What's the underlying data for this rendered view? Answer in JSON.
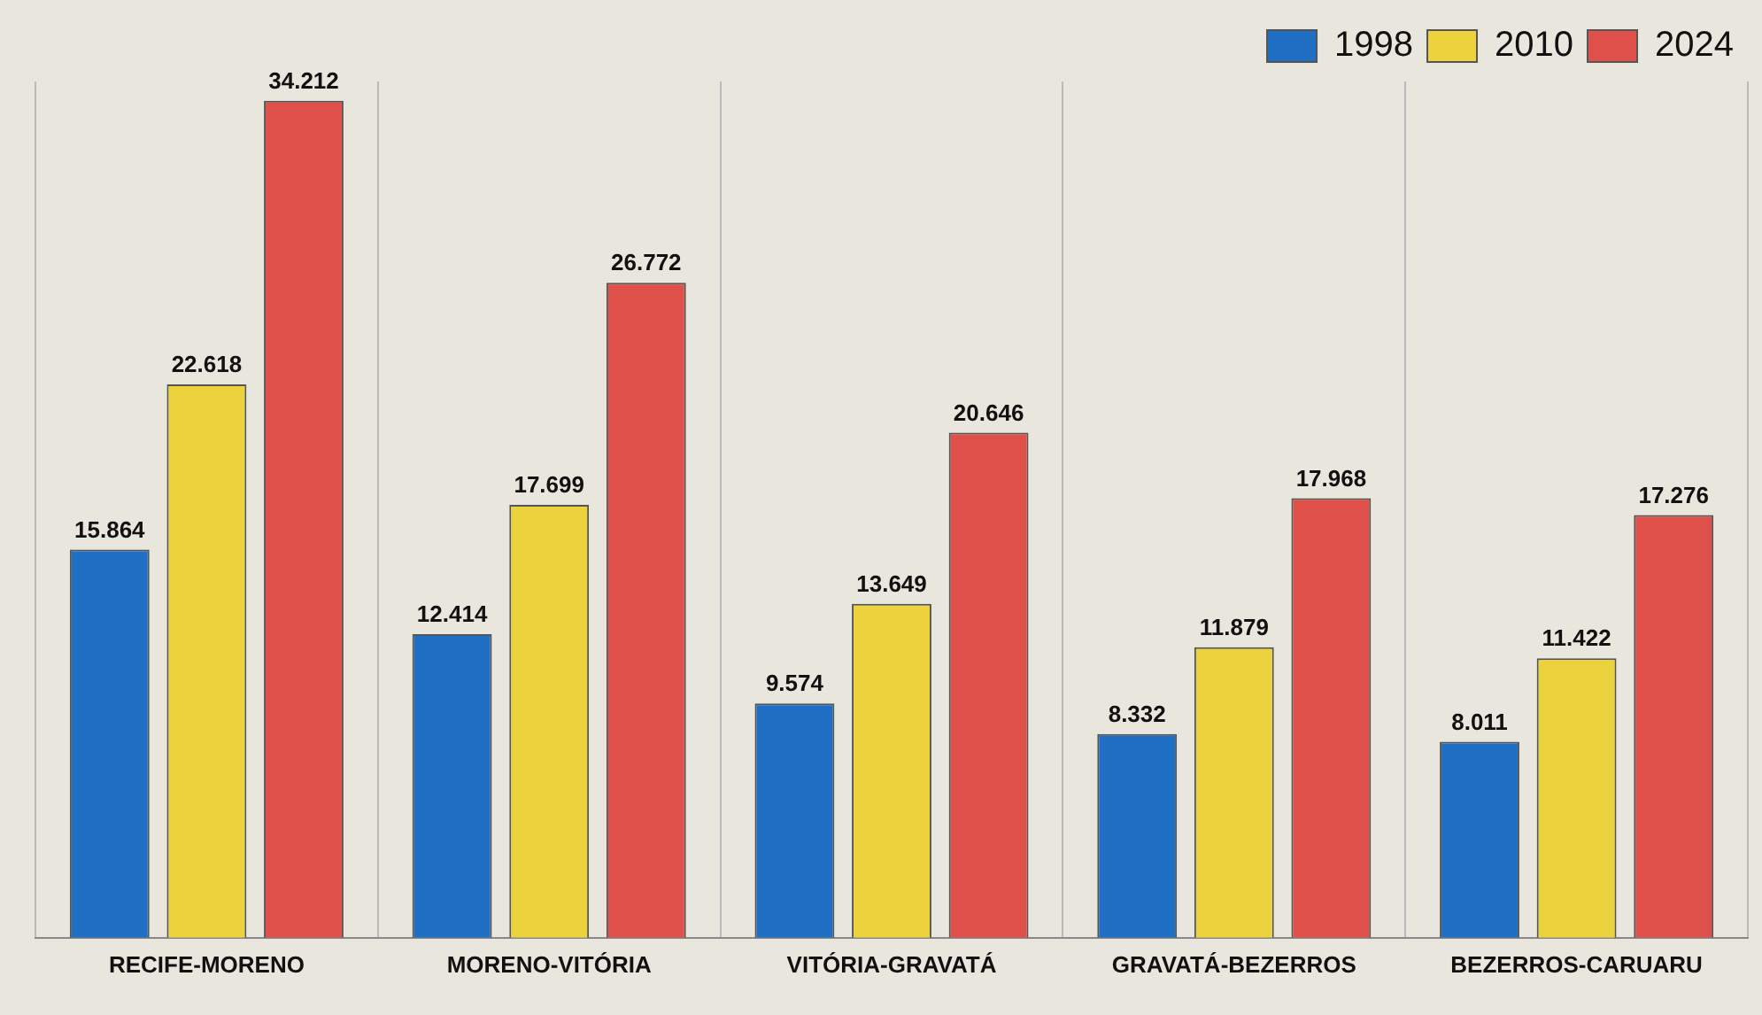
{
  "chart_data": {
    "type": "bar",
    "categories": [
      "RECIFE-MORENO",
      "MORENO-VITÓRIA",
      "VITÓRIA-GRAVATÁ",
      "GRAVATÁ-BEZERROS",
      "BEZERROS-CARUARU"
    ],
    "series": [
      {
        "name": "1998",
        "color": "#1f6fc4",
        "values": [
          15864,
          12414,
          9574,
          8332,
          8011
        ],
        "value_labels": [
          "15.864",
          "12.414",
          "9.574",
          "8.332",
          "8.011"
        ]
      },
      {
        "name": "2010",
        "color": "#ecd23c",
        "values": [
          22618,
          17699,
          13649,
          11879,
          11422
        ],
        "value_labels": [
          "22.618",
          "17.699",
          "13.649",
          "11.879",
          "11.422"
        ]
      },
      {
        "name": "2024",
        "color": "#e0504a",
        "values": [
          34212,
          26772,
          20646,
          17968,
          17276
        ],
        "value_labels": [
          "34.212",
          "26.772",
          "20.646",
          "17.968",
          "17.276"
        ]
      }
    ],
    "legend": "top right",
    "grid": "x"
  }
}
